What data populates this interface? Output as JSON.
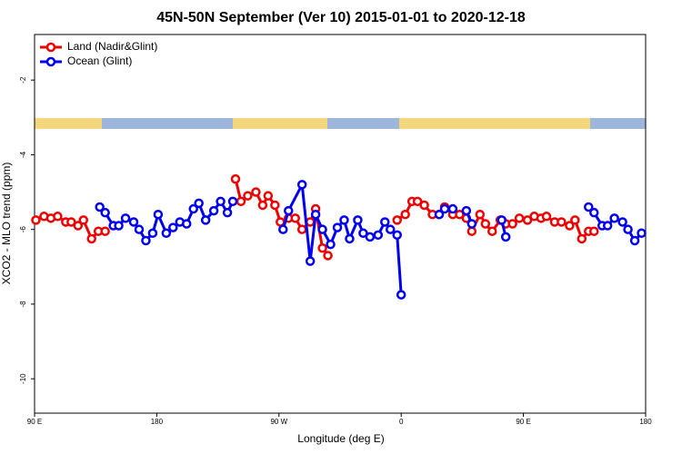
{
  "chart_data": {
    "type": "line",
    "title": "45N-50N September (Ver 10)   2015-01-01 to 2020-12-18",
    "xlabel": "Longitude (deg E)",
    "ylabel": "XCO2 - MLO trend (ppm)",
    "xlim": [
      -270,
      180
    ],
    "xticks": [
      {
        "value": -270,
        "label": "90 E"
      },
      {
        "value": -180,
        "label": "180"
      },
      {
        "value": -90,
        "label": "90 W"
      },
      0,
      {
        "value": 90,
        "label": "90 E"
      },
      {
        "value": 180,
        "label": "180"
      }
    ],
    "ylim": [
      -10.92,
      -0.78
    ],
    "yticks": [
      -10,
      -8,
      -6,
      -4,
      -2
    ],
    "legend": "top-left",
    "series": [
      {
        "name": "Land (Nadir&Glint)",
        "color": "#ee0000",
        "x": [
          -269,
          -263,
          -258,
          -253,
          -247,
          -243,
          -238,
          -234,
          -228,
          -223,
          -218,
          null,
          -122,
          -118,
          -113,
          -107,
          -102,
          -98,
          -93,
          -89,
          -83,
          -78,
          -73,
          -67,
          -63,
          -58,
          -54,
          null,
          -3,
          3,
          8,
          12,
          17,
          23,
          28,
          32,
          38,
          43,
          48,
          52,
          58,
          62,
          67,
          73,
          77,
          82,
          87,
          93,
          98,
          103,
          107,
          113,
          118,
          124,
          128,
          133,
          138,
          142
        ],
        "values": [
          -5.75,
          -5.65,
          -5.7,
          -5.65,
          -5.8,
          -5.8,
          -5.9,
          -5.75,
          -6.25,
          -6.05,
          -6.05,
          null,
          -4.65,
          -5.25,
          -5.1,
          -5.0,
          -5.35,
          -5.1,
          -5.35,
          -5.8,
          -5.7,
          -5.7,
          -6.0,
          -5.8,
          -5.45,
          -6.5,
          -6.7,
          null,
          -5.75,
          -5.6,
          -5.25,
          -5.25,
          -5.35,
          -5.6,
          -5.6,
          -5.4,
          -5.6,
          -5.6,
          -5.7,
          -6.05,
          -5.6,
          -5.85,
          -6.05,
          -5.75,
          -5.85,
          -5.85,
          -5.7,
          -5.75,
          -5.65,
          -5.7,
          -5.65,
          -5.8,
          -5.8,
          -5.9,
          -5.75,
          -6.25,
          -6.05,
          -6.05
        ]
      },
      {
        "name": "Ocean (Glint)",
        "color": "#0000ee",
        "x": [
          -222,
          -218,
          -212,
          -208,
          -203,
          -197,
          -193,
          -188,
          -183,
          -179,
          -173,
          -168,
          -163,
          -158,
          -153,
          -149,
          -144,
          -138,
          -133,
          -128,
          -124,
          null,
          -87,
          -83,
          -73,
          -67,
          -63,
          -58,
          -52,
          -47,
          -42,
          -38,
          -32,
          -28,
          -23,
          -17,
          -12,
          -8,
          -3,
          0,
          null,
          28,
          32,
          38,
          null,
          48,
          52,
          null,
          74,
          77,
          null,
          138,
          142,
          148,
          152,
          157,
          163,
          167,
          172,
          177
        ],
        "values": [
          -5.4,
          -5.55,
          -5.9,
          -5.9,
          -5.7,
          -5.8,
          -6.0,
          -6.3,
          -6.1,
          -5.6,
          -6.1,
          -5.95,
          -5.8,
          -5.85,
          -5.45,
          -5.3,
          -5.75,
          -5.5,
          -5.25,
          -5.55,
          -5.25,
          null,
          -6.0,
          -5.5,
          -4.8,
          -6.85,
          -5.6,
          -6.0,
          -6.4,
          -5.95,
          -5.75,
          -6.25,
          -5.75,
          -6.1,
          -6.2,
          -6.15,
          -5.8,
          -6.0,
          -6.15,
          -7.75,
          null,
          -5.6,
          -5.45,
          -5.45,
          null,
          -5.5,
          -5.85,
          null,
          -5.75,
          -6.2,
          null,
          -5.4,
          -5.55,
          -5.9,
          -5.9,
          -5.7,
          -5.8,
          -6.0,
          -6.3,
          -6.1
        ]
      }
    ]
  }
}
